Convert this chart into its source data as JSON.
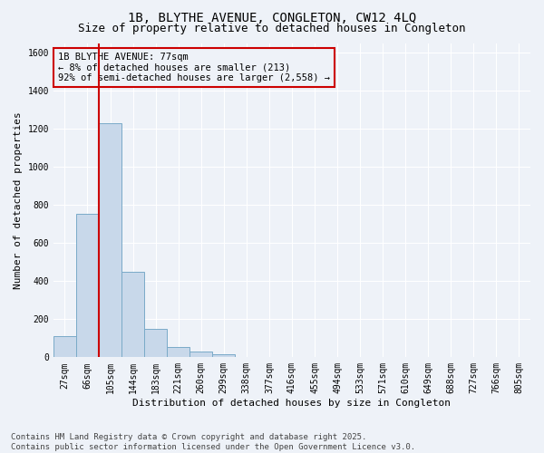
{
  "title_line1": "1B, BLYTHE AVENUE, CONGLETON, CW12 4LQ",
  "title_line2": "Size of property relative to detached houses in Congleton",
  "xlabel": "Distribution of detached houses by size in Congleton",
  "ylabel": "Number of detached properties",
  "bar_color": "#c8d8ea",
  "bar_edge_color": "#7aaac8",
  "vline_color": "#cc0000",
  "vline_x": 1.5,
  "annotation_text": "1B BLYTHE AVENUE: 77sqm\n← 8% of detached houses are smaller (213)\n92% of semi-detached houses are larger (2,558) →",
  "annotation_box_color": "#cc0000",
  "background_color": "#eef2f8",
  "categories": [
    "27sqm",
    "66sqm",
    "105sqm",
    "144sqm",
    "183sqm",
    "221sqm",
    "260sqm",
    "299sqm",
    "338sqm",
    "377sqm",
    "416sqm",
    "455sqm",
    "494sqm",
    "533sqm",
    "571sqm",
    "610sqm",
    "649sqm",
    "688sqm",
    "727sqm",
    "766sqm",
    "805sqm"
  ],
  "values": [
    110,
    755,
    1230,
    450,
    150,
    55,
    32,
    18,
    0,
    0,
    0,
    0,
    0,
    0,
    0,
    0,
    0,
    0,
    0,
    0,
    0
  ],
  "ylim": [
    0,
    1650
  ],
  "yticks": [
    0,
    200,
    400,
    600,
    800,
    1000,
    1200,
    1400,
    1600
  ],
  "footer_text": "Contains HM Land Registry data © Crown copyright and database right 2025.\nContains public sector information licensed under the Open Government Licence v3.0.",
  "title_fontsize": 10,
  "subtitle_fontsize": 9,
  "axis_label_fontsize": 8,
  "tick_fontsize": 7,
  "footer_fontsize": 6.5,
  "annotation_fontsize": 7.5
}
